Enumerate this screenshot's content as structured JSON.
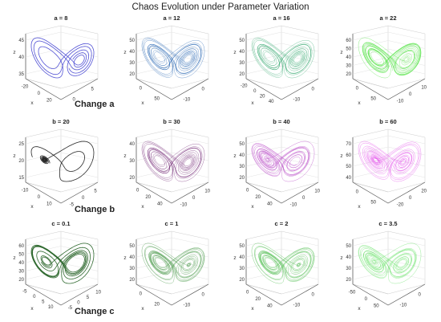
{
  "page": {
    "title": "Chaos Evolution under Parameter Variation"
  },
  "row_labels": [
    "Change a",
    "Change b",
    "Change c"
  ],
  "chart_data": [
    {
      "type": "line",
      "title": "a = 8",
      "xlabel": "x",
      "ylabel": "z",
      "color": "#4040d0",
      "x_ticks": [
        "-20",
        "0",
        "20"
      ],
      "y_tick_labels": [
        "0",
        "5"
      ],
      "z_ticks": [
        "35",
        "40",
        "45"
      ],
      "zlim": [
        33,
        47
      ],
      "grid": true
    },
    {
      "type": "line",
      "title": "a = 12",
      "xlabel": "x",
      "ylabel": "z",
      "color": "#1f5fb0",
      "x_ticks": [
        "0",
        "50"
      ],
      "y_tick_labels": [
        "-10",
        "0"
      ],
      "z_ticks": [
        "20",
        "30",
        "40",
        "50"
      ],
      "zlim": [
        15,
        55
      ],
      "grid": true
    },
    {
      "type": "line",
      "title": "a = 16",
      "xlabel": "x",
      "ylabel": "z",
      "color": "#2fa66a",
      "x_ticks": [
        "-20",
        "0",
        "20",
        "40"
      ],
      "y_tick_labels": [
        "-10",
        "0"
      ],
      "z_ticks": [
        "20",
        "30",
        "40",
        "50"
      ],
      "zlim": [
        15,
        55
      ],
      "grid": true
    },
    {
      "type": "line",
      "title": "a = 22",
      "xlabel": "x",
      "ylabel": "z",
      "color": "#44e035",
      "x_ticks": [
        "0",
        "50"
      ],
      "y_tick_labels": [
        "-10",
        "0",
        "10"
      ],
      "z_ticks": [
        "20",
        "30",
        "40",
        "50",
        "60"
      ],
      "zlim": [
        15,
        65
      ],
      "grid": true
    },
    {
      "type": "line",
      "title": "b = 20",
      "xlabel": "x",
      "ylabel": "z",
      "color": "#111111",
      "x_ticks": [
        "-10",
        "0",
        "10"
      ],
      "y_tick_labels": [
        "-5",
        "0",
        "5"
      ],
      "z_ticks": [
        "15",
        "20",
        "25"
      ],
      "zlim": [
        12,
        28
      ],
      "grid": true
    },
    {
      "type": "line",
      "title": "b = 30",
      "xlabel": "x",
      "ylabel": "z",
      "color": "#6a1b6e",
      "x_ticks": [
        "0",
        "20",
        "40"
      ],
      "y_tick_labels": [
        "-10",
        "0",
        "10"
      ],
      "z_ticks": [
        "20",
        "30",
        "40"
      ],
      "zlim": [
        15,
        45
      ],
      "grid": true
    },
    {
      "type": "line",
      "title": "b = 40",
      "xlabel": "x",
      "ylabel": "z",
      "color": "#b030c0",
      "x_ticks": [
        "0",
        "20",
        "40"
      ],
      "y_tick_labels": [
        "-10",
        "0",
        "10"
      ],
      "z_ticks": [
        "20",
        "30",
        "40",
        "50"
      ],
      "zlim": [
        15,
        55
      ],
      "grid": true
    },
    {
      "type": "line",
      "title": "b = 60",
      "xlabel": "x",
      "ylabel": "z",
      "color": "#e040e8",
      "x_ticks": [
        "0",
        "50"
      ],
      "y_tick_labels": [
        "-20",
        "0",
        "20"
      ],
      "z_ticks": [
        "40",
        "50",
        "60",
        "70"
      ],
      "zlim": [
        35,
        75
      ],
      "grid": true
    },
    {
      "type": "line",
      "title": "c = 0.1",
      "xlabel": "x",
      "ylabel": "z",
      "color": "#1a5a1a",
      "x_ticks": [
        "-5",
        "0",
        "5",
        "10"
      ],
      "y_tick_labels": [
        "-5",
        "0",
        "5",
        "10"
      ],
      "z_ticks": [
        "20",
        "30",
        "40",
        "50",
        "60"
      ],
      "zlim": [
        15,
        65
      ],
      "grid": true
    },
    {
      "type": "line",
      "title": "c = 1",
      "xlabel": "x",
      "ylabel": "z",
      "color": "#2f8a2f",
      "x_ticks": [
        "0",
        "20"
      ],
      "y_tick_labels": [
        "-10",
        "0"
      ],
      "z_ticks": [
        "20",
        "30",
        "40",
        "50"
      ],
      "zlim": [
        15,
        55
      ],
      "grid": true
    },
    {
      "type": "line",
      "title": "c = 2",
      "xlabel": "x",
      "ylabel": "z",
      "color": "#36b436",
      "x_ticks": [
        "0",
        "20",
        "40"
      ],
      "y_tick_labels": [
        "-10",
        "0"
      ],
      "z_ticks": [
        "20",
        "30",
        "40",
        "50"
      ],
      "zlim": [
        15,
        55
      ],
      "grid": true
    },
    {
      "type": "line",
      "title": "c = 3.5",
      "xlabel": "x",
      "ylabel": "z",
      "color": "#5adf5a",
      "x_ticks": [
        "-50",
        "0",
        "50"
      ],
      "y_tick_labels": [
        "-10",
        "0"
      ],
      "z_ticks": [
        "20",
        "30",
        "40",
        "50"
      ],
      "zlim": [
        15,
        55
      ],
      "grid": true
    }
  ]
}
